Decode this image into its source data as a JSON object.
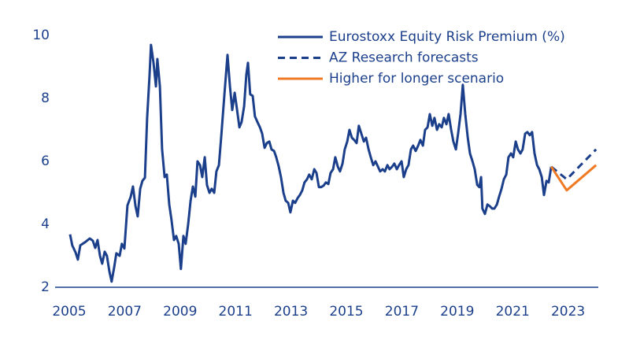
{
  "chart_data": {
    "type": "line",
    "xlim": [
      2004.49,
      2024.09
    ],
    "xticks": [
      2005,
      2007,
      2009,
      2011,
      2013,
      2015,
      2017,
      2019,
      2021,
      2023
    ],
    "ylim": [
      2,
      10.3
    ],
    "yticks": [
      2,
      4,
      6,
      8,
      10
    ],
    "grid": false,
    "legend": "top-right",
    "series": [
      {
        "name": "Eurostoxx Equity Risk Premium (%)",
        "color": "#1b3f8b",
        "dashed": false,
        "x": [
          2005.03,
          2005.11,
          2005.23,
          2005.31,
          2005.4,
          2005.57,
          2005.74,
          2005.85,
          2005.94,
          2006.02,
          2006.11,
          2006.19,
          2006.28,
          2006.36,
          2006.45,
          2006.53,
          2006.62,
          2006.7,
          2006.82,
          2006.9,
          2006.99,
          2007.1,
          2007.22,
          2007.3,
          2007.39,
          2007.47,
          2007.56,
          2007.64,
          2007.73,
          2007.81,
          2007.9,
          2007.95,
          2008.04,
          2008.13,
          2008.18,
          2008.27,
          2008.35,
          2008.44,
          2008.52,
          2008.61,
          2008.69,
          2008.78,
          2008.86,
          2008.95,
          2009.03,
          2009.12,
          2009.2,
          2009.29,
          2009.38,
          2009.46,
          2009.55,
          2009.63,
          2009.72,
          2009.8,
          2009.89,
          2009.97,
          2010.06,
          2010.14,
          2010.23,
          2010.31,
          2010.4,
          2010.48,
          2010.6,
          2010.71,
          2010.8,
          2010.88,
          2010.97,
          2011.05,
          2011.14,
          2011.22,
          2011.31,
          2011.39,
          2011.45,
          2011.53,
          2011.62,
          2011.7,
          2011.79,
          2011.88,
          2011.96,
          2012.05,
          2012.13,
          2012.22,
          2012.3,
          2012.39,
          2012.47,
          2012.56,
          2012.64,
          2012.73,
          2012.81,
          2012.9,
          2012.98,
          2013.07,
          2013.15,
          2013.24,
          2013.32,
          2013.41,
          2013.49,
          2013.58,
          2013.66,
          2013.75,
          2013.84,
          2013.92,
          2014.01,
          2014.09,
          2014.18,
          2014.26,
          2014.35,
          2014.43,
          2014.52,
          2014.6,
          2014.69,
          2014.77,
          2014.86,
          2014.94,
          2015.03,
          2015.11,
          2015.2,
          2015.28,
          2015.37,
          2015.45,
          2015.54,
          2015.63,
          2015.71,
          2015.8,
          2015.88,
          2015.97,
          2016.05,
          2016.14,
          2016.22,
          2016.31,
          2016.39,
          2016.48,
          2016.56,
          2016.65,
          2016.73,
          2016.82,
          2016.9,
          2016.99,
          2017.07,
          2017.16,
          2017.24,
          2017.33,
          2017.41,
          2017.5,
          2017.59,
          2017.67,
          2017.76,
          2017.84,
          2017.93,
          2018.01,
          2018.1,
          2018.18,
          2018.27,
          2018.35,
          2018.44,
          2018.52,
          2018.61,
          2018.69,
          2018.78,
          2018.86,
          2018.95,
          2019.03,
          2019.12,
          2019.2,
          2019.29,
          2019.38,
          2019.46,
          2019.55,
          2019.63,
          2019.72,
          2019.8,
          2019.86,
          2019.91,
          2020.0,
          2020.09,
          2020.17,
          2020.26,
          2020.34,
          2020.43,
          2020.51,
          2020.6,
          2020.68,
          2020.77,
          2020.85,
          2020.94,
          2021.02,
          2021.11,
          2021.19,
          2021.28,
          2021.36,
          2021.45,
          2021.53,
          2021.62,
          2021.7,
          2021.79,
          2021.88,
          2021.96,
          2022.05,
          2022.13,
          2022.22,
          2022.3,
          2022.39
        ],
        "values": [
          3.68,
          3.33,
          3.1,
          2.88,
          3.33,
          3.43,
          3.55,
          3.48,
          3.25,
          3.5,
          3.0,
          2.75,
          3.13,
          3.0,
          2.5,
          2.18,
          2.63,
          3.08,
          3.0,
          3.38,
          3.23,
          4.6,
          4.88,
          5.2,
          4.58,
          4.25,
          5.13,
          5.38,
          5.48,
          7.38,
          8.75,
          9.7,
          9.13,
          8.38,
          9.25,
          8.38,
          6.38,
          5.5,
          5.58,
          4.63,
          4.13,
          3.5,
          3.63,
          3.38,
          2.58,
          3.63,
          3.38,
          4.0,
          4.75,
          5.2,
          4.88,
          6.0,
          5.88,
          5.5,
          6.13,
          5.25,
          5.0,
          5.13,
          5.0,
          5.68,
          5.88,
          6.75,
          8.13,
          9.38,
          8.38,
          7.63,
          8.18,
          7.68,
          7.08,
          7.25,
          7.75,
          8.75,
          9.13,
          8.13,
          8.08,
          7.43,
          7.25,
          7.08,
          6.88,
          6.43,
          6.58,
          6.63,
          6.38,
          6.33,
          6.13,
          5.83,
          5.5,
          5.0,
          4.75,
          4.68,
          4.38,
          4.75,
          4.68,
          4.83,
          4.93,
          5.08,
          5.33,
          5.43,
          5.58,
          5.43,
          5.75,
          5.63,
          5.18,
          5.18,
          5.23,
          5.33,
          5.28,
          5.63,
          5.75,
          6.13,
          5.83,
          5.68,
          5.93,
          6.38,
          6.63,
          7.0,
          6.75,
          6.68,
          6.58,
          7.13,
          6.88,
          6.63,
          6.75,
          6.38,
          6.13,
          5.88,
          6.0,
          5.83,
          5.68,
          5.75,
          5.68,
          5.88,
          5.75,
          5.83,
          5.93,
          5.75,
          5.88,
          6.0,
          5.5,
          5.75,
          5.88,
          6.38,
          6.5,
          6.33,
          6.5,
          6.68,
          6.5,
          7.0,
          7.08,
          7.5,
          7.13,
          7.38,
          7.0,
          7.18,
          7.08,
          7.38,
          7.18,
          7.5,
          7.0,
          6.63,
          6.38,
          6.88,
          7.5,
          8.43,
          7.5,
          6.75,
          6.25,
          6.0,
          5.75,
          5.25,
          5.18,
          5.5,
          4.5,
          4.33,
          4.63,
          4.58,
          4.5,
          4.5,
          4.63,
          4.88,
          5.13,
          5.43,
          5.58,
          6.13,
          6.25,
          6.13,
          6.63,
          6.38,
          6.25,
          6.38,
          6.88,
          6.93,
          6.83,
          6.93,
          6.25,
          5.88,
          5.75,
          5.5,
          4.93,
          5.38,
          5.33,
          5.83
        ]
      },
      {
        "name": "AZ Research forecasts",
        "color": "#1b3f8b",
        "dashed": true,
        "x": [
          2022.39,
          2022.95,
          2024.01
        ],
        "values": [
          5.83,
          5.43,
          6.38
        ]
      },
      {
        "name": "Higher for longer scenario",
        "color": "#f07a24",
        "dashed": false,
        "x": [
          2022.39,
          2022.95,
          2024.01
        ],
        "values": [
          5.83,
          5.08,
          5.88
        ]
      }
    ]
  }
}
